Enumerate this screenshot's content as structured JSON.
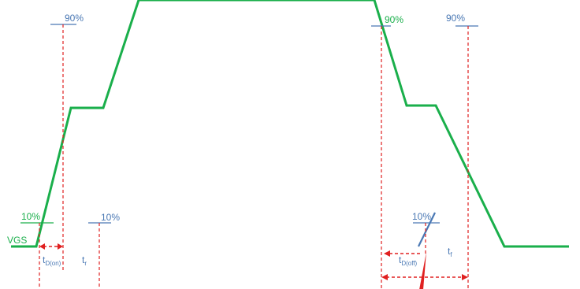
{
  "colors": {
    "waveform": "#1aaf4b",
    "marker_blue": "#4a78b4",
    "guide_red": "#e02020",
    "label_green": "#1aaf4b",
    "label_blue": "#4a78b4",
    "background": "#ffffff"
  },
  "labels": {
    "vgs": "VGS",
    "turn_on_10_green": "10%",
    "turn_on_90": "90%",
    "turn_on_10_blue": "10%",
    "turn_off_90_green": "90%",
    "turn_off_90_blue": "90%",
    "turn_off_10": "10%",
    "td_on_main": "t",
    "td_on_sub": "D(on)",
    "tr_main": "t",
    "tr_sub": "r",
    "td_off_main": "t",
    "td_off_sub": "D(off)",
    "tf_main": "t",
    "tf_sub": "f"
  }
}
